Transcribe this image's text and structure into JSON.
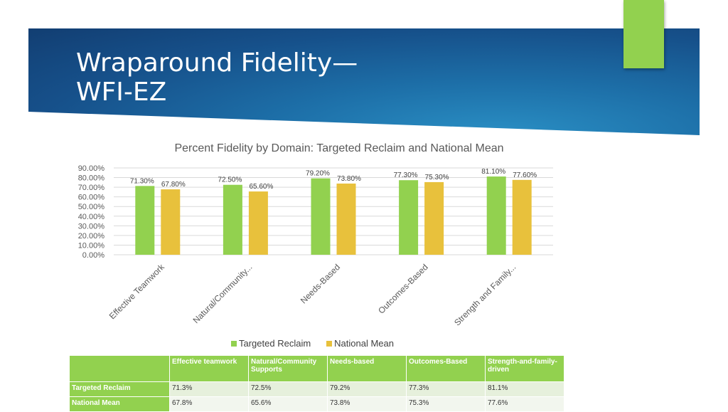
{
  "slide": {
    "title_line1": "Wraparound Fidelity—",
    "title_line2": "WFI-EZ"
  },
  "chart_data": {
    "type": "bar",
    "title": "Percent Fidelity by Domain: Targeted Reclaim and National Mean",
    "categories": [
      "Effective Teamwork",
      "Natural/Community...",
      "Needs-Based",
      "Outcomes-Based",
      "Strength and Family..."
    ],
    "series": [
      {
        "name": "Targeted Reclaim",
        "values": [
          71.3,
          72.5,
          79.2,
          77.3,
          81.1
        ],
        "labels": [
          "71.30%",
          "72.50%",
          "79.20%",
          "77.30%",
          "81.10%"
        ],
        "color": "#92d14f"
      },
      {
        "name": "National Mean",
        "values": [
          67.8,
          65.6,
          73.8,
          75.3,
          77.6
        ],
        "labels": [
          "67.80%",
          "65.60%",
          "73.80%",
          "75.30%",
          "77.60%"
        ],
        "color": "#e8c13c"
      }
    ],
    "ylim": [
      0,
      90
    ],
    "yticks": [
      "0.00%",
      "10.00%",
      "20.00%",
      "30.00%",
      "40.00%",
      "50.00%",
      "60.00%",
      "70.00%",
      "80.00%",
      "90.00%"
    ],
    "grid": true,
    "legend": "bottom"
  },
  "table": {
    "headers": [
      "",
      "Effective teamwork",
      "Natural/Community Supports",
      "Needs-based",
      "Outcomes-Based",
      "Strength-and-family-driven"
    ],
    "rows": [
      [
        "Targeted Reclaim",
        "71.3%",
        "72.5%",
        "79.2%",
        "77.3%",
        "81.1%"
      ],
      [
        "National Mean",
        "67.8%",
        "65.6%",
        "73.8%",
        "75.3%",
        "77.6%"
      ]
    ]
  },
  "colors": {
    "accent": "#92d14f",
    "secondary": "#e8c13c",
    "banner": "#1d6fa8"
  }
}
